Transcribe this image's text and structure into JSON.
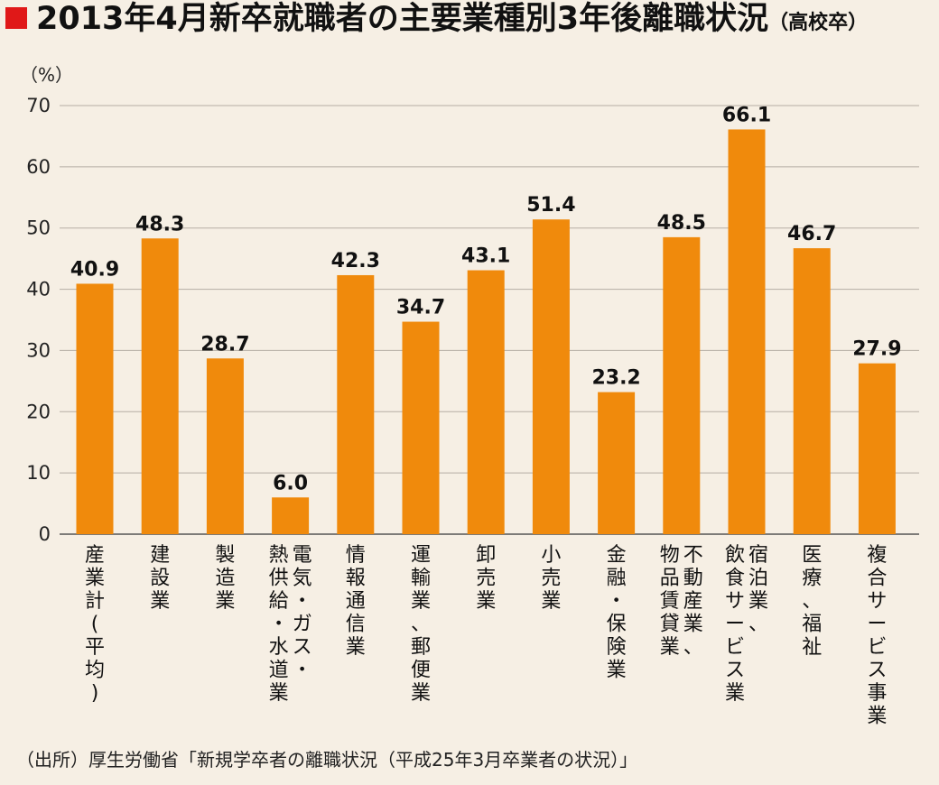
{
  "chart_data": {
    "type": "bar",
    "title": "2013年4月新卒就職者の主要業種別3年後離職状況",
    "subtitle": "（高校卒）",
    "ylabel": "（%）",
    "xlabel": "",
    "ylim": [
      0,
      70
    ],
    "yticks": [
      0,
      10,
      20,
      30,
      40,
      50,
      60,
      70
    ],
    "grid": true,
    "categories": [
      [
        "産業計(平均)"
      ],
      [
        "建設業"
      ],
      [
        "製造業"
      ],
      [
        "電気・ガス・",
        "熱供給・水道業"
      ],
      [
        "情報通信業"
      ],
      [
        "運輸業、郵便業"
      ],
      [
        "卸売業"
      ],
      [
        "小売業"
      ],
      [
        "金融・保険業"
      ],
      [
        "不動産業、",
        "物品賃貸業"
      ],
      [
        "宿泊業、",
        "飲食サービス業"
      ],
      [
        "医療、福祉"
      ],
      [
        "複合サービス事業"
      ]
    ],
    "values": [
      40.9,
      48.3,
      28.7,
      6.0,
      42.3,
      34.7,
      43.1,
      51.4,
      23.2,
      48.5,
      66.1,
      46.7,
      27.9
    ],
    "value_labels": [
      "40.9",
      "48.3",
      "28.7",
      "6.0",
      "42.3",
      "34.7",
      "43.1",
      "51.4",
      "23.2",
      "48.5",
      "66.1",
      "46.7",
      "27.9"
    ],
    "source": "（出所）厚生労働省「新規学卒者の離職状況（平成25年3月卒業者の状況）」",
    "colors": {
      "bar": "#f08a0c",
      "title_marker": "#e01818",
      "grid": "#b5aea4",
      "background": "#f6efe4"
    }
  }
}
